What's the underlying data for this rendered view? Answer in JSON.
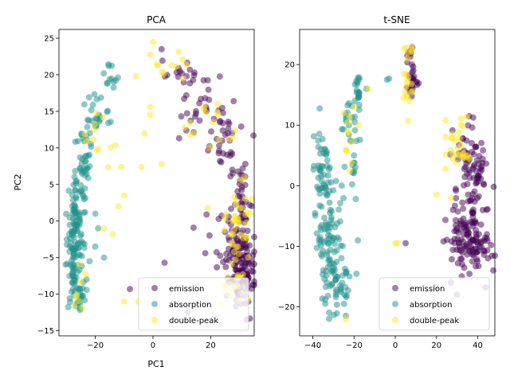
{
  "colors": {
    "emission": "#440154",
    "absorption": "#21918c",
    "double-peak": "#fde725"
  },
  "legend_labels": [
    "emission",
    "absorption",
    "double-peak"
  ],
  "chart_data": [
    {
      "type": "scatter",
      "title": "PCA",
      "xlabel": "PC1",
      "ylabel": "PC2",
      "xlim": [
        -32.6,
        35.1
      ],
      "ylim": [
        -15.7,
        26.2
      ],
      "xticks": [
        -20,
        0,
        20
      ],
      "yticks": [
        -15,
        -10,
        -5,
        0,
        5,
        10,
        15,
        20,
        25
      ],
      "legend_position": "lower right",
      "series": [
        {
          "name": "emission",
          "clusters": [
            {
              "cx": 30,
              "cy": -6,
              "sx": 2.5,
              "sy": 3,
              "n": 140
            },
            {
              "cx": 30,
              "cy": 2,
              "sx": 1.8,
              "sy": 4,
              "n": 50
            },
            {
              "cx": 25,
              "cy": 11,
              "sx": 3,
              "sy": 2.5,
              "n": 30
            },
            {
              "cx": 16,
              "cy": 16,
              "sx": 4,
              "sy": 2,
              "n": 25
            },
            {
              "cx": 9,
              "cy": 20,
              "sx": 3,
              "sy": 1,
              "n": 15
            },
            {
              "cx": 22,
              "cy": -2,
              "sx": 3,
              "sy": 3,
              "n": 10
            }
          ],
          "extra": [
            [
              3,
              23.5
            ],
            [
              4,
              -5.7
            ],
            [
              -8,
              -9.3
            ],
            [
              12,
              -12.5
            ]
          ]
        },
        {
          "name": "absorption",
          "clusters": [
            {
              "cx": -27.5,
              "cy": -5,
              "sx": 1.2,
              "sy": 3,
              "n": 80
            },
            {
              "cx": -26,
              "cy": 2,
              "sx": 1.5,
              "sy": 3,
              "n": 60
            },
            {
              "cx": -25,
              "cy": -10,
              "sx": 1.2,
              "sy": 1,
              "n": 20
            },
            {
              "cx": -24,
              "cy": 8,
              "sx": 1.2,
              "sy": 2,
              "n": 30
            },
            {
              "cx": -20,
              "cy": 15,
              "sx": 2.5,
              "sy": 1.5,
              "n": 25
            },
            {
              "cx": -14,
              "cy": 19,
              "sx": 2,
              "sy": 1.2,
              "n": 12
            }
          ],
          "extra": [
            [
              -22,
              -5.5
            ],
            [
              -20,
              -3.5
            ],
            [
              -19,
              -1
            ],
            [
              -20,
              1
            ],
            [
              -17,
              -5
            ],
            [
              -23,
              -8
            ]
          ]
        },
        {
          "name": "double-peak",
          "clusters": [
            {
              "cx": 30,
              "cy": 0,
              "sx": 2,
              "sy": 3,
              "n": 40
            },
            {
              "cx": 28,
              "cy": -9,
              "sx": 3,
              "sy": 1.5,
              "n": 20
            },
            {
              "cx": 20,
              "cy": 13,
              "sx": 4,
              "sy": 2,
              "n": 15
            },
            {
              "cx": 5,
              "cy": 21,
              "sx": 5,
              "sy": 2,
              "n": 12
            },
            {
              "cx": -20,
              "cy": 12,
              "sx": 3,
              "sy": 2,
              "n": 12
            },
            {
              "cx": -26,
              "cy": -10,
              "sx": 1.5,
              "sy": 1.5,
              "n": 8
            }
          ],
          "extra": [
            [
              -4,
              7.4
            ],
            [
              3,
              7.8
            ],
            [
              -17,
              -1
            ],
            [
              -10,
              -11
            ],
            [
              -5,
              -11
            ],
            [
              -12,
              2
            ],
            [
              -10,
              3.5
            ],
            [
              -11,
              7.4
            ],
            [
              -1,
              14.5
            ],
            [
              -1,
              15.6
            ],
            [
              0,
              24.5
            ],
            [
              -3,
              12
            ],
            [
              19,
              1.8
            ],
            [
              11,
              12.8
            ],
            [
              -14,
              -1.8
            ]
          ]
        }
      ]
    },
    {
      "type": "scatter",
      "title": "t-SNE",
      "xlabel": "",
      "ylabel": "",
      "xlim": [
        -46.4,
        48.3
      ],
      "ylim": [
        -24.8,
        25.8
      ],
      "xticks": [
        -40,
        -20,
        0,
        20,
        40
      ],
      "yticks": [
        -20,
        -10,
        0,
        10,
        20
      ],
      "legend_position": "lower right",
      "series": [
        {
          "name": "emission",
          "clusters": [
            {
              "cx": 36,
              "cy": -10,
              "sx": 5,
              "sy": 2.5,
              "n": 100
            },
            {
              "cx": 38,
              "cy": 0,
              "sx": 3,
              "sy": 3,
              "n": 50
            },
            {
              "cx": 36,
              "cy": 5,
              "sx": 4,
              "sy": 2.5,
              "n": 35
            },
            {
              "cx": 30,
              "cy": -6,
              "sx": 2.5,
              "sy": 3,
              "n": 20
            },
            {
              "cx": 8,
              "cy": 16.5,
              "sx": 1.2,
              "sy": 1.5,
              "n": 22
            },
            {
              "cx": 7,
              "cy": 21.5,
              "sx": 0.8,
              "sy": 0.8,
              "n": 8
            }
          ],
          "extra": [
            [
              28,
              -4
            ],
            [
              5,
              -9.5
            ],
            [
              30,
              -18
            ],
            [
              27,
              -16
            ]
          ]
        },
        {
          "name": "absorption",
          "clusters": [
            {
              "cx": -33,
              "cy": -8,
              "sx": 3,
              "sy": 4,
              "n": 80
            },
            {
              "cx": -28,
              "cy": -16,
              "sx": 3,
              "sy": 2.5,
              "n": 50
            },
            {
              "cx": -35,
              "cy": 3,
              "sx": 2.5,
              "sy": 3,
              "n": 40
            },
            {
              "cx": -23,
              "cy": 10,
              "sx": 2,
              "sy": 2.5,
              "n": 20
            },
            {
              "cx": -18,
              "cy": 16,
              "sx": 1,
              "sy": 2,
              "n": 20
            },
            {
              "cx": -20,
              "cy": 3,
              "sx": 1.5,
              "sy": 2,
              "n": 10
            }
          ],
          "extra": [
            [
              -4,
              17.5
            ],
            [
              -3,
              17.7
            ],
            [
              -14,
              16
            ],
            [
              -24,
              -21.5
            ],
            [
              -20,
              5
            ],
            [
              -26,
              0
            ]
          ]
        },
        {
          "name": "double-peak",
          "clusters": [
            {
              "cx": 30,
              "cy": 7,
              "sx": 3,
              "sy": 2,
              "n": 30
            },
            {
              "cx": 6,
              "cy": 17,
              "sx": 1.3,
              "sy": 2.5,
              "n": 15
            },
            {
              "cx": 6,
              "cy": 22.5,
              "sx": 1,
              "sy": 0.6,
              "n": 6
            },
            {
              "cx": -23,
              "cy": 6,
              "sx": 1.5,
              "sy": 3,
              "n": 10
            }
          ],
          "extra": [
            [
              -13,
              16
            ],
            [
              -20,
              13
            ],
            [
              -18,
              10
            ],
            [
              -25,
              12
            ],
            [
              -24,
              -22
            ],
            [
              0,
              -9.5
            ],
            [
              1,
              -9.5
            ],
            [
              20,
              -1.5
            ],
            [
              27,
              -2
            ],
            [
              7,
              14
            ]
          ]
        }
      ]
    }
  ]
}
